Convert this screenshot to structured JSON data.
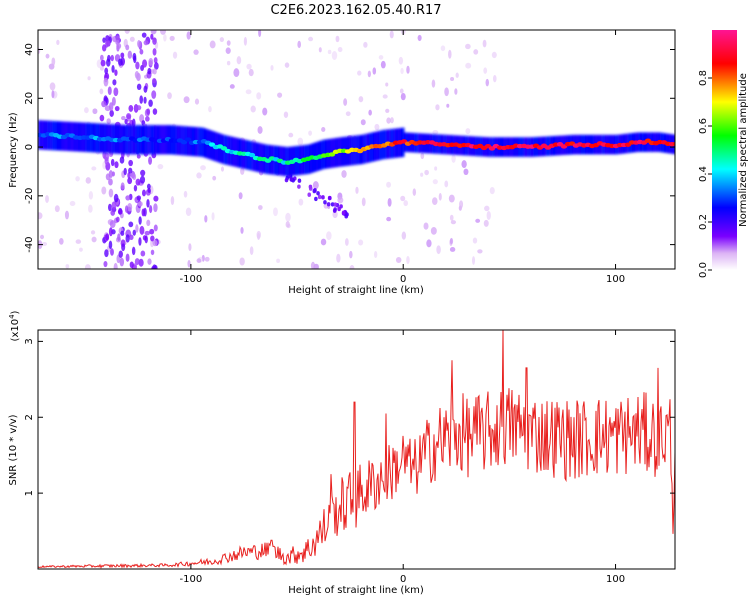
{
  "chart_data": [
    {
      "type": "heatmap",
      "title": "C2E6.2023.162.05.40.R17",
      "xlabel": "Height of straight line (km)",
      "ylabel": "Frequency (Hz)",
      "xlim": [
        -172,
        128
      ],
      "ylim": [
        -50,
        48
      ],
      "x_ticks": [
        -100,
        0,
        100
      ],
      "x_tick_labels": [
        "-100",
        "0",
        "100"
      ],
      "y_ticks": [
        -40,
        -20,
        0,
        20,
        40
      ],
      "y_tick_labels": [
        "-40",
        "-20",
        "0",
        "20",
        "40"
      ],
      "colorbar": {
        "label": "Normalized spectral amplitude",
        "range": [
          0,
          1
        ],
        "ticks": [
          0.0,
          0.2,
          0.4,
          0.6,
          0.8
        ],
        "tick_labels": [
          "0.0",
          "0.2",
          "0.4",
          "0.6",
          "0.8"
        ],
        "colormap": [
          "#ffffff",
          "#dcb3f5",
          "#7a00ff",
          "#0000ff",
          "#00ffff",
          "#00ff00",
          "#ffff00",
          "#ff0000",
          "#ff1493"
        ]
      },
      "ridge": {
        "x": [
          -172,
          -150,
          -130,
          -110,
          -95,
          -85,
          -75,
          -65,
          -55,
          -45,
          -38,
          -30,
          -20,
          -10,
          0,
          20,
          40,
          60,
          80,
          100,
          110,
          120,
          128
        ],
        "freq": [
          5,
          4,
          3,
          3,
          2,
          -1,
          -3,
          -5,
          -6,
          -5,
          -3,
          -2,
          -1,
          1,
          2,
          1,
          0,
          0,
          1,
          1,
          2,
          2,
          1
        ],
        "amplitude": [
          0.35,
          0.35,
          0.3,
          0.3,
          0.35,
          0.4,
          0.45,
          0.45,
          0.45,
          0.5,
          0.6,
          0.65,
          0.75,
          0.8,
          0.85,
          0.9,
          0.92,
          0.92,
          0.9,
          0.9,
          0.9,
          0.88,
          0.88
        ]
      }
    },
    {
      "type": "line",
      "xlabel": "Height of straight line (km)",
      "ylabel": "SNR (10 * v/v)",
      "y_multiplier_label": "(x10",
      "y_multiplier_exp": "4",
      "y_multiplier_close": ")",
      "xlim": [
        -172,
        128
      ],
      "ylim": [
        0,
        3.15
      ],
      "x_ticks": [
        -100,
        0,
        100
      ],
      "x_tick_labels": [
        "-100",
        "0",
        "100"
      ],
      "y_ticks": [
        1,
        2,
        3
      ],
      "y_tick_labels": [
        "1",
        "2",
        "3"
      ],
      "color": "#e8201e",
      "series": [
        {
          "name": "SNR",
          "x": [
            -172,
            -140,
            -110,
            -90,
            -75,
            -62,
            -55,
            -45,
            -38,
            -32,
            -28,
            -24,
            -20,
            -15,
            -10,
            -5,
            0,
            5,
            10,
            15,
            20,
            25,
            30,
            40,
            50,
            60,
            70,
            80,
            90,
            100,
            110,
            120,
            126,
            127,
            128
          ],
          "y": [
            0.03,
            0.04,
            0.05,
            0.1,
            0.22,
            0.25,
            0.15,
            0.25,
            0.5,
            0.75,
            0.85,
            0.9,
            1.0,
            1.1,
            1.2,
            1.3,
            1.45,
            1.3,
            1.5,
            1.65,
            1.7,
            1.8,
            1.75,
            1.8,
            1.9,
            1.8,
            1.75,
            1.7,
            1.75,
            1.75,
            1.8,
            1.75,
            1.8,
            0.4,
            1.6
          ],
          "noise": [
            0.01,
            0.02,
            0.02,
            0.05,
            0.1,
            0.12,
            0.1,
            0.18,
            0.3,
            0.35,
            0.4,
            0.45,
            0.4,
            0.4,
            0.4,
            0.4,
            0.4,
            0.4,
            0.45,
            0.5,
            0.55,
            0.55,
            0.55,
            0.55,
            0.55,
            0.55,
            0.55,
            0.55,
            0.55,
            0.55,
            0.55,
            0.55,
            0.55,
            0.0,
            0.3
          ],
          "peaks": [
            {
              "x": -62,
              "y": 0.38
            },
            {
              "x": -34,
              "y": 1.25
            },
            {
              "x": -23,
              "y": 2.2
            },
            {
              "x": -8,
              "y": 2.05
            },
            {
              "x": 23,
              "y": 2.75
            },
            {
              "x": 47,
              "y": 3.15
            },
            {
              "x": 58,
              "y": 2.65
            },
            {
              "x": 120,
              "y": 2.65
            }
          ]
        }
      ]
    }
  ]
}
